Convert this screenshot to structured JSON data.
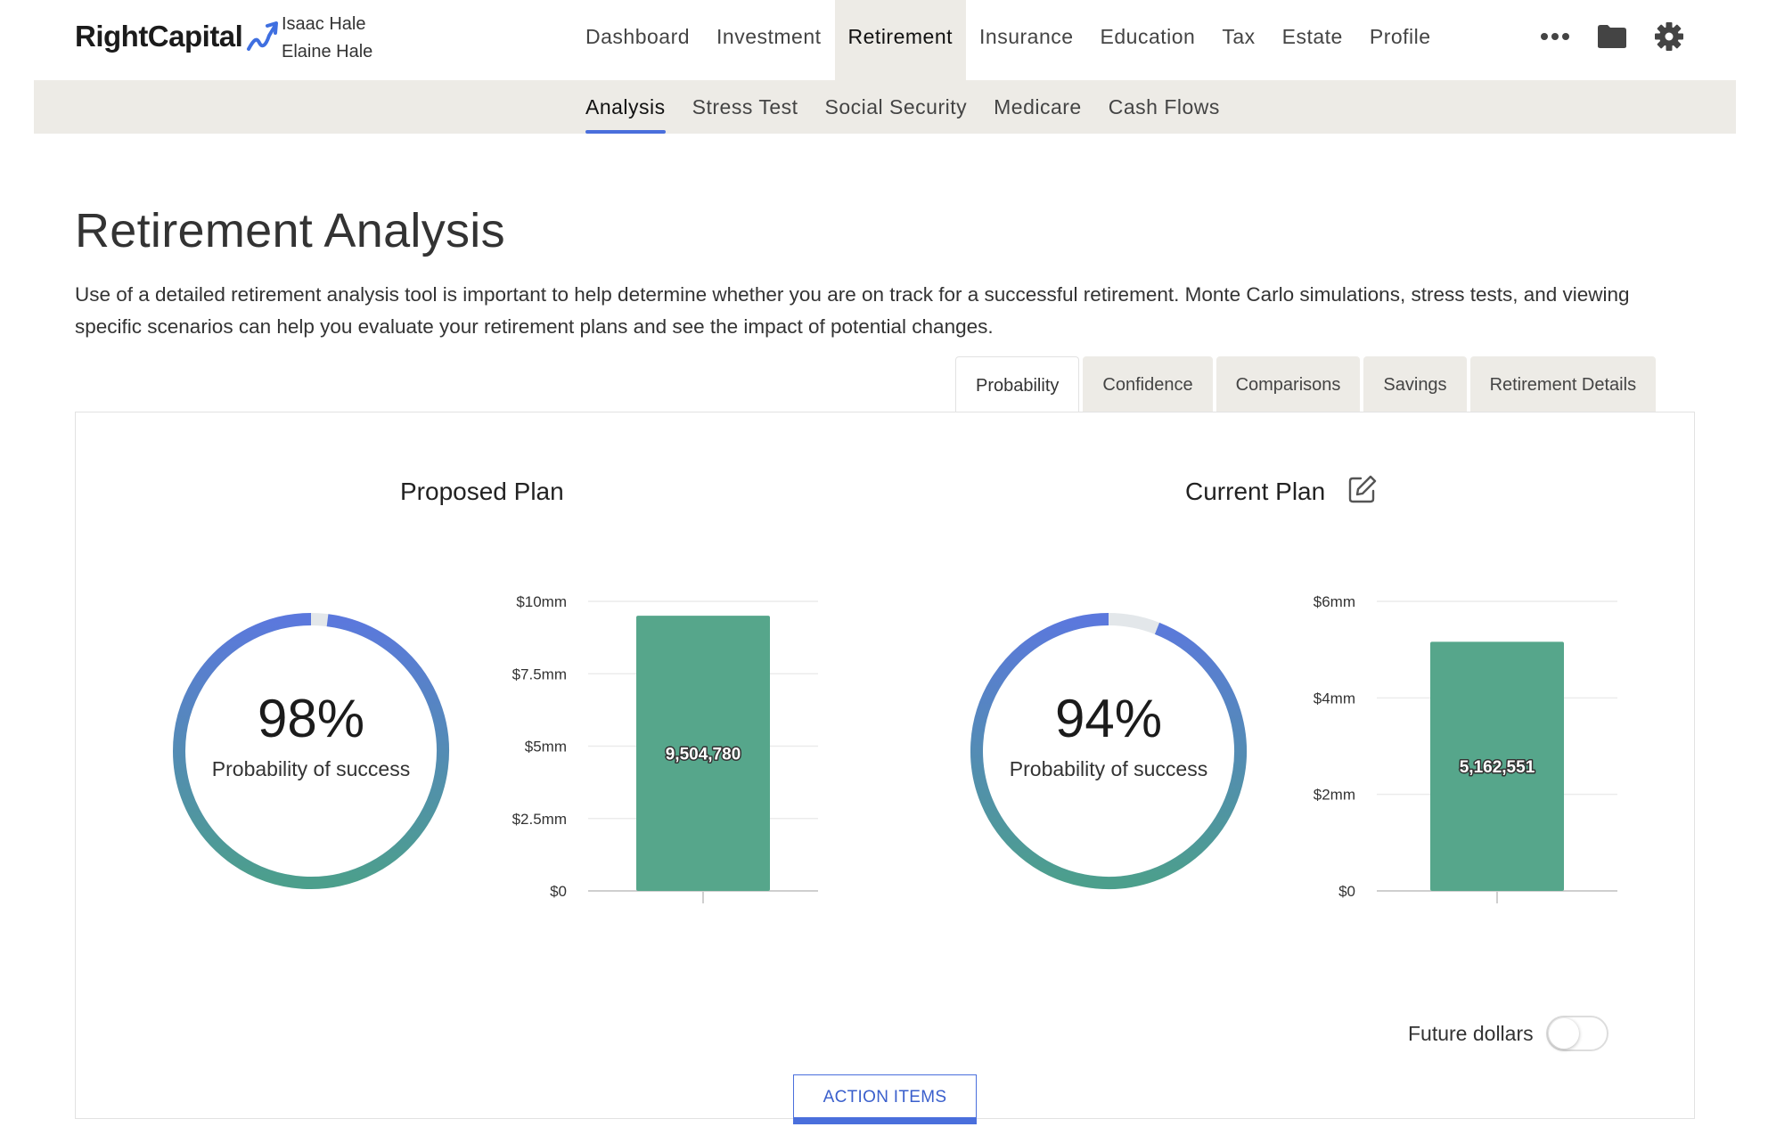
{
  "header": {
    "brand": "RightCapital",
    "clients": [
      "Isaac Hale",
      "Elaine Hale"
    ],
    "nav": [
      {
        "label": "Dashboard",
        "active": false
      },
      {
        "label": "Investment",
        "active": false
      },
      {
        "label": "Retirement",
        "active": true
      },
      {
        "label": "Insurance",
        "active": false
      },
      {
        "label": "Education",
        "active": false
      },
      {
        "label": "Tax",
        "active": false
      },
      {
        "label": "Estate",
        "active": false
      },
      {
        "label": "Profile",
        "active": false
      }
    ],
    "icons": [
      "more-icon",
      "folder-icon",
      "gear-icon"
    ]
  },
  "subnav": [
    {
      "label": "Analysis",
      "active": true
    },
    {
      "label": "Stress Test",
      "active": false
    },
    {
      "label": "Social Security",
      "active": false
    },
    {
      "label": "Medicare",
      "active": false
    },
    {
      "label": "Cash Flows",
      "active": false
    }
  ],
  "page": {
    "title": "Retirement Analysis",
    "description": "Use of a detailed retirement analysis tool is important to help determine whether you are on track for a successful retirement. Monte Carlo simulations, stress tests, and viewing specific scenarios can help you evaluate your retirement plans and see the impact of potential changes."
  },
  "tabs": [
    {
      "label": "Probability",
      "active": true
    },
    {
      "label": "Confidence",
      "active": false
    },
    {
      "label": "Comparisons",
      "active": false
    },
    {
      "label": "Savings",
      "active": false
    },
    {
      "label": "Retirement Details",
      "active": false
    }
  ],
  "plans": {
    "proposed": {
      "title": "Proposed Plan",
      "probability_text": "98%",
      "probability_label": "Probability of success"
    },
    "current": {
      "title": "Current Plan",
      "probability_text": "94%",
      "probability_label": "Probability of success"
    }
  },
  "controls": {
    "future_dollars_label": "Future dollars",
    "future_dollars_on": false,
    "action_items_label": "ACTION ITEMS"
  },
  "colors": {
    "accent": "#4a6fdc",
    "bar": "#56a68b",
    "gauge_start": "#4c9f8c",
    "gauge_end": "#5b78dd",
    "gauge_track": "#e3e7ea"
  },
  "chart_data": [
    {
      "type": "gauge",
      "title": "Proposed Plan",
      "value": 98,
      "unit": "%",
      "label": "Probability of success"
    },
    {
      "type": "bar",
      "title": "Proposed Plan",
      "categories": [
        ""
      ],
      "values": [
        9504780
      ],
      "value_labels": [
        "9,504,780"
      ],
      "yticks": [
        0,
        2500000,
        5000000,
        7500000,
        10000000
      ],
      "ytick_labels": [
        "$0",
        "$2.5mm",
        "$5mm",
        "$7.5mm",
        "$10mm"
      ],
      "ylim": [
        0,
        10000000
      ],
      "grid": true
    },
    {
      "type": "gauge",
      "title": "Current Plan",
      "value": 94,
      "unit": "%",
      "label": "Probability of success"
    },
    {
      "type": "bar",
      "title": "Current Plan",
      "categories": [
        ""
      ],
      "values": [
        5162551
      ],
      "value_labels": [
        "5,162,551"
      ],
      "yticks": [
        0,
        2000000,
        4000000,
        6000000
      ],
      "ytick_labels": [
        "$0",
        "$2mm",
        "$4mm",
        "$6mm"
      ],
      "ylim": [
        0,
        6000000
      ],
      "grid": true
    }
  ]
}
